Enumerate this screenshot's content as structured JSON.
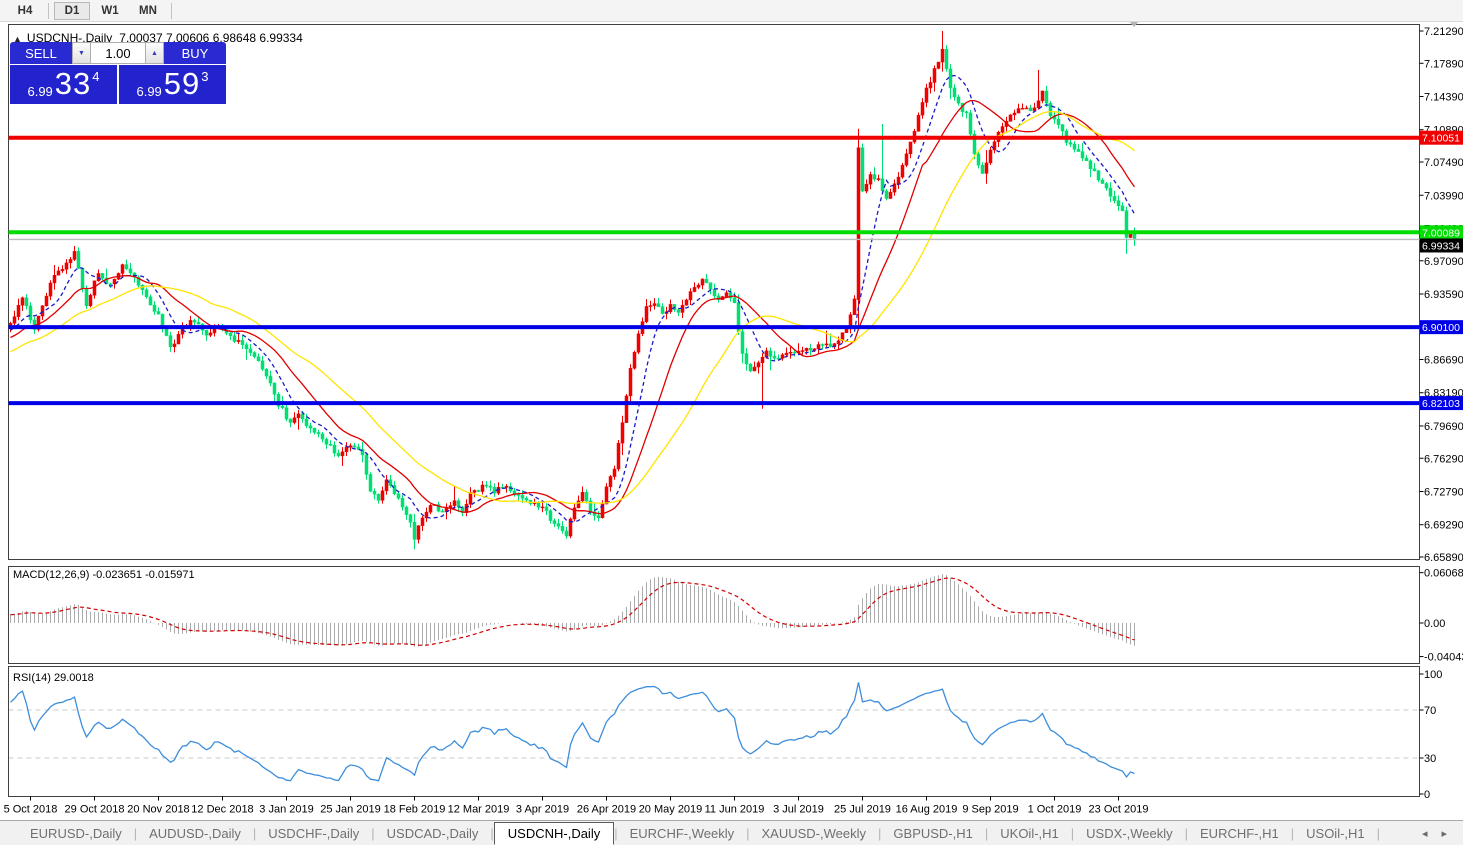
{
  "toolbar": {
    "timeframes": [
      {
        "label": "H4",
        "active": false
      },
      {
        "label": "D1",
        "active": true
      },
      {
        "label": "W1",
        "active": false
      },
      {
        "label": "MN",
        "active": false
      }
    ]
  },
  "chart": {
    "title": "USDCNH-,Daily",
    "ohlc": "7.00037 7.00606 6.98648 6.99334",
    "trade_panel": {
      "sell_label": "SELL",
      "buy_label": "BUY",
      "volume": "1.00",
      "sell_price": {
        "small": "6.99",
        "big": "33",
        "sup": "4"
      },
      "buy_price": {
        "small": "6.99",
        "big": "59",
        "sup": "3"
      },
      "panel_color": "#2a2ad2"
    }
  },
  "chart_data": {
    "type": "candlestick",
    "symbol": "USDCNH-",
    "timeframe": "Daily",
    "ohlc_display": {
      "open": "7.00037",
      "high": "7.00606",
      "low": "6.98648",
      "close": "6.99334"
    },
    "price_range": {
      "top": 7.2129,
      "bottom": 6.6589
    },
    "price_axis_ticks": [
      "7.21290",
      "7.17890",
      "7.14390",
      "7.10890",
      "7.07490",
      "7.03990",
      "7.00490",
      "6.97090",
      "6.93590",
      "6.90190",
      "6.86690",
      "6.83190",
      "6.79690",
      "6.76290",
      "6.72790",
      "6.69290",
      "6.65890"
    ],
    "date_ticks": [
      {
        "label": "5 Oct 2018",
        "i": 5
      },
      {
        "label": "29 Oct 2018",
        "i": 21
      },
      {
        "label": "20 Nov 2018",
        "i": 37
      },
      {
        "label": "12 Dec 2018",
        "i": 53
      },
      {
        "label": "3 Jan 2019",
        "i": 69
      },
      {
        "label": "25 Jan 2019",
        "i": 85
      },
      {
        "label": "18 Feb 2019",
        "i": 101
      },
      {
        "label": "12 Mar 2019",
        "i": 117
      },
      {
        "label": "3 Apr 2019",
        "i": 133
      },
      {
        "label": "26 Apr 2019",
        "i": 149
      },
      {
        "label": "20 May 2019",
        "i": 165
      },
      {
        "label": "11 Jun 2019",
        "i": 181
      },
      {
        "label": "3 Jul 2019",
        "i": 197
      },
      {
        "label": "25 Jul 2019",
        "i": 213
      },
      {
        "label": "16 Aug 2019",
        "i": 229
      },
      {
        "label": "9 Sep 2019",
        "i": 245
      },
      {
        "label": "1 Oct 2019",
        "i": 261
      },
      {
        "label": "23 Oct 2019",
        "i": 277
      }
    ],
    "colors": {
      "bull": "#f20000",
      "bear": "#00df72",
      "histogram": "#ababab",
      "macd_signal": "#d40000",
      "rsi_line": "#3d8edb"
    },
    "hlines": [
      {
        "price": 7.10051,
        "label": "7.10051",
        "color": "#f00000",
        "width": 4
      },
      {
        "price": 7.00089,
        "label": "7.00089",
        "color": "#00dd00",
        "width": 4
      },
      {
        "price": 6.901,
        "label": "6.90100",
        "color": "#0000e6",
        "width": 4
      },
      {
        "price": 6.82103,
        "label": "6.82103",
        "color": "#0000e6",
        "width": 4
      }
    ],
    "current_price": {
      "value": 6.99334,
      "label": "6.99334",
      "line_color": "#bdbdbd",
      "label_bg": "#000000"
    },
    "moving_averages": [
      {
        "name": "fast-ma",
        "period": 8,
        "color": "#1a1ac8",
        "dash": "4,3"
      },
      {
        "name": "mid-ma",
        "period": 17,
        "color": "#e00000",
        "dash": ""
      },
      {
        "name": "slow-ma",
        "period": 34,
        "color": "#ffe400",
        "dash": ""
      }
    ],
    "macd": {
      "label": "MACD(12,26,9)",
      "values_text": "-0.023651 -0.015971",
      "fast": 12,
      "slow": 26,
      "signal": 9,
      "axis_ticks": [
        "0.060687",
        "0.00",
        "-0.040432"
      ],
      "axis_values": [
        0.060687,
        0,
        -0.040432
      ]
    },
    "rsi": {
      "label": "RSI(14)",
      "value_text": "29.0018",
      "period": 14,
      "axis_ticks": [
        "100",
        "70",
        "30",
        "0"
      ],
      "axis_values": [
        100,
        70,
        30,
        0
      ],
      "levels": [
        70,
        30
      ]
    },
    "close_path_anchors": [
      [
        0,
        6.905
      ],
      [
        3,
        6.932
      ],
      [
        6,
        6.9
      ],
      [
        10,
        6.948
      ],
      [
        13,
        6.962
      ],
      [
        16,
        6.978
      ],
      [
        19,
        6.925
      ],
      [
        22,
        6.958
      ],
      [
        25,
        6.944
      ],
      [
        28,
        6.968
      ],
      [
        31,
        6.952
      ],
      [
        34,
        6.93
      ],
      [
        37,
        6.912
      ],
      [
        40,
        6.878
      ],
      [
        43,
        6.902
      ],
      [
        46,
        6.908
      ],
      [
        49,
        6.892
      ],
      [
        52,
        6.902
      ],
      [
        55,
        6.89
      ],
      [
        58,
        6.884
      ],
      [
        61,
        6.868
      ],
      [
        64,
        6.852
      ],
      [
        67,
        6.82
      ],
      [
        70,
        6.8
      ],
      [
        72,
        6.812
      ],
      [
        75,
        6.792
      ],
      [
        78,
        6.786
      ],
      [
        80,
        6.774
      ],
      [
        82,
        6.764
      ],
      [
        85,
        6.778
      ],
      [
        88,
        6.768
      ],
      [
        90,
        6.728
      ],
      [
        92,
        6.718
      ],
      [
        94,
        6.74
      ],
      [
        97,
        6.722
      ],
      [
        100,
        6.696
      ],
      [
        101,
        6.678
      ],
      [
        103,
        6.7
      ],
      [
        105,
        6.714
      ],
      [
        108,
        6.708
      ],
      [
        111,
        6.72
      ],
      [
        113,
        6.708
      ],
      [
        115,
        6.724
      ],
      [
        118,
        6.732
      ],
      [
        121,
        6.728
      ],
      [
        124,
        6.736
      ],
      [
        127,
        6.722
      ],
      [
        130,
        6.718
      ],
      [
        133,
        6.712
      ],
      [
        135,
        6.7
      ],
      [
        138,
        6.688
      ],
      [
        139,
        6.682
      ],
      [
        141,
        6.712
      ],
      [
        143,
        6.728
      ],
      [
        145,
        6.706
      ],
      [
        147,
        6.703
      ],
      [
        149,
        6.732
      ],
      [
        151,
        6.752
      ],
      [
        153,
        6.8
      ],
      [
        155,
        6.856
      ],
      [
        157,
        6.895
      ],
      [
        159,
        6.92
      ],
      [
        161,
        6.928
      ],
      [
        163,
        6.914
      ],
      [
        165,
        6.923
      ],
      [
        167,
        6.917
      ],
      [
        169,
        6.932
      ],
      [
        171,
        6.942
      ],
      [
        173,
        6.952
      ],
      [
        175,
        6.94
      ],
      [
        177,
        6.932
      ],
      [
        179,
        6.94
      ],
      [
        181,
        6.925
      ],
      [
        183,
        6.872
      ],
      [
        185,
        6.855
      ],
      [
        187,
        6.862
      ],
      [
        189,
        6.875
      ],
      [
        191,
        6.868
      ],
      [
        194,
        6.874
      ],
      [
        197,
        6.878
      ],
      [
        200,
        6.877
      ],
      [
        203,
        6.884
      ],
      [
        206,
        6.883
      ],
      [
        209,
        6.9
      ],
      [
        211,
        6.93
      ],
      [
        212,
        7.09
      ],
      [
        213,
        7.045
      ],
      [
        215,
        7.062
      ],
      [
        217,
        7.056
      ],
      [
        219,
        7.034
      ],
      [
        221,
        7.052
      ],
      [
        223,
        7.072
      ],
      [
        225,
        7.094
      ],
      [
        227,
        7.122
      ],
      [
        229,
        7.15
      ],
      [
        231,
        7.172
      ],
      [
        233,
        7.192
      ],
      [
        235,
        7.152
      ],
      [
        237,
        7.136
      ],
      [
        239,
        7.124
      ],
      [
        241,
        7.082
      ],
      [
        243,
        7.062
      ],
      [
        245,
        7.086
      ],
      [
        247,
        7.106
      ],
      [
        249,
        7.12
      ],
      [
        251,
        7.128
      ],
      [
        253,
        7.134
      ],
      [
        255,
        7.128
      ],
      [
        257,
        7.142
      ],
      [
        258,
        7.148
      ],
      [
        260,
        7.126
      ],
      [
        262,
        7.112
      ],
      [
        264,
        7.098
      ],
      [
        266,
        7.088
      ],
      [
        268,
        7.082
      ],
      [
        270,
        7.068
      ],
      [
        272,
        7.058
      ],
      [
        274,
        7.048
      ],
      [
        276,
        7.032
      ],
      [
        278,
        7.026
      ],
      [
        279,
        6.997
      ],
      [
        280,
        7.0004
      ],
      [
        281,
        6.99334
      ]
    ],
    "candle_overrides": {
      "101": {
        "l": 6.667
      },
      "139": {
        "l": 6.678
      },
      "188": {
        "l": 6.815
      },
      "212": {
        "o": 6.93,
        "c": 7.09,
        "h": 7.11,
        "l": 6.9
      },
      "218": {
        "h": 7.115
      },
      "233": {
        "h": 7.2129
      },
      "257": {
        "h": 7.172
      },
      "279": {
        "l": 6.978
      },
      "281": {
        "o": 7.00037,
        "h": 7.00606,
        "l": 6.98648,
        "c": 6.99334
      }
    }
  },
  "tabs": {
    "items": [
      {
        "label": "EURUSD-,Daily",
        "active": false
      },
      {
        "label": "AUDUSD-,Daily",
        "active": false
      },
      {
        "label": "USDCHF-,Daily",
        "active": false
      },
      {
        "label": "USDCAD-,Daily",
        "active": false
      },
      {
        "label": "USDCNH-,Daily",
        "active": true
      },
      {
        "label": "EURCHF-,Weekly",
        "active": false
      },
      {
        "label": "XAUUSD-,Weekly",
        "active": false
      },
      {
        "label": "GBPUSD-,H1",
        "active": false
      },
      {
        "label": "UKOil-,H1",
        "active": false
      },
      {
        "label": "USDX-,Weekly",
        "active": false
      },
      {
        "label": "EURCHF-,H1",
        "active": false
      },
      {
        "label": "USOil-,H1",
        "active": false
      }
    ],
    "scroll_left": "◂",
    "scroll_right": "▸"
  }
}
